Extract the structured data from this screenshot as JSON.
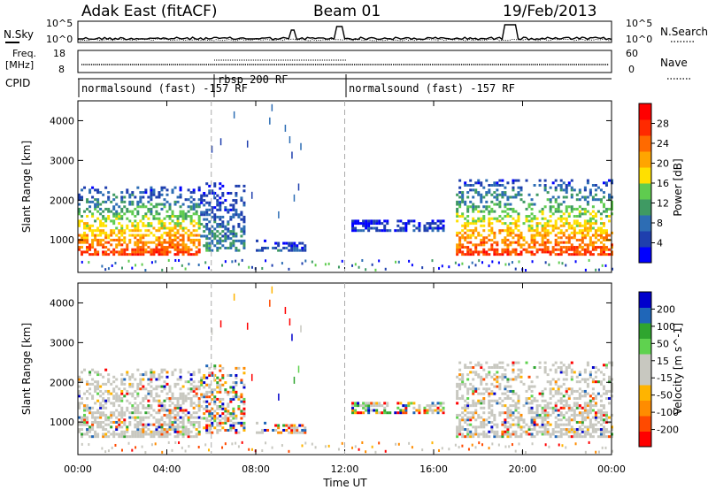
{
  "header": {
    "title": "Adak East (fitACF)",
    "beam": "Beam 01",
    "date": "19/Feb/2013"
  },
  "left_labels": {
    "nsky": "N.Sky",
    "freq": "Freq.",
    "freq_unit": "[MHz]",
    "cpid": "CPID"
  },
  "right_labels": {
    "nsearch": "N.Search",
    "nave": "Nave"
  },
  "noise_axis": {
    "top_tick": "10^5",
    "bottom_tick": "10^0"
  },
  "freq_axis": {
    "ticks": [
      "18",
      "8"
    ]
  },
  "nave_axis": {
    "ticks": [
      "60",
      "0"
    ]
  },
  "cpid": {
    "segments": [
      {
        "label": "normalsound (fast) -157 RF",
        "start_hour": 0,
        "end_hour": 6
      },
      {
        "label": "rbsp 200 RF",
        "start_hour": 6,
        "end_hour": 12
      },
      {
        "label": "normalsound (fast) -157 RF",
        "start_hour": 12,
        "end_hour": 24
      }
    ]
  },
  "colors": {
    "power_scale": [
      "#0000ff",
      "#1f3fae",
      "#2d6db4",
      "#3f9a63",
      "#5fcc4f",
      "#ffe000",
      "#ffa500",
      "#ff6a00",
      "#ff2a00",
      "#ff0000"
    ],
    "velocity_scale": [
      "#ff0000",
      "#ff4a00",
      "#ff8c00",
      "#ffb400",
      "#c8c8c0",
      "#c8c8c0",
      "#5fd24f",
      "#2fa52f",
      "#1f66b8",
      "#0000cc"
    ],
    "ground_scatter": "#c8c8c0"
  },
  "chart_data": [
    {
      "type": "heatmap",
      "name": "power",
      "x_range": [
        0,
        24
      ],
      "y_range": [
        180,
        4500
      ],
      "ylabel": "Slant Range [km]",
      "y_ticks": [
        "1000",
        "2000",
        "3000",
        "4000"
      ],
      "colorbar_label": "Power [dB]",
      "colorbar_ticks": [
        "4",
        "8",
        "12",
        "16",
        "20",
        "24",
        "28"
      ],
      "colorbar_range": [
        0,
        32
      ],
      "scatter_bands": [
        {
          "start_hour": 0.0,
          "end_hour": 5.5,
          "range_low_km": 600,
          "range_high_km": 2300,
          "peak_db": 28
        },
        {
          "start_hour": 5.5,
          "end_hour": 7.5,
          "range_low_km": 700,
          "range_high_km": 2400,
          "peak_db": 10
        },
        {
          "start_hour": 8.0,
          "end_hour": 10.2,
          "range_low_km": 700,
          "range_high_km": 1000,
          "peak_db": 6
        },
        {
          "start_hour": 12.3,
          "end_hour": 16.5,
          "range_low_km": 1200,
          "range_high_km": 1500,
          "peak_db": 4
        },
        {
          "start_hour": 17.0,
          "end_hour": 24.0,
          "range_low_km": 600,
          "range_high_km": 2500,
          "peak_db": 28
        }
      ]
    },
    {
      "type": "heatmap",
      "name": "velocity",
      "x_range": [
        0,
        24
      ],
      "y_range": [
        180,
        4500
      ],
      "xlabel": "Time UT",
      "ylabel": "Slant Range [km]",
      "x_ticks": [
        "00:00",
        "04:00",
        "08:00",
        "12:00",
        "16:00",
        "20:00",
        "00:00"
      ],
      "y_ticks": [
        "1000",
        "2000",
        "3000",
        "4000"
      ],
      "colorbar_label": "Velocity [m s^-1]",
      "colorbar_ticks": [
        "-200",
        "-100",
        "-50",
        "-15",
        "15",
        "50",
        "100",
        "200"
      ],
      "colorbar_range": [
        -250,
        250
      ]
    }
  ]
}
